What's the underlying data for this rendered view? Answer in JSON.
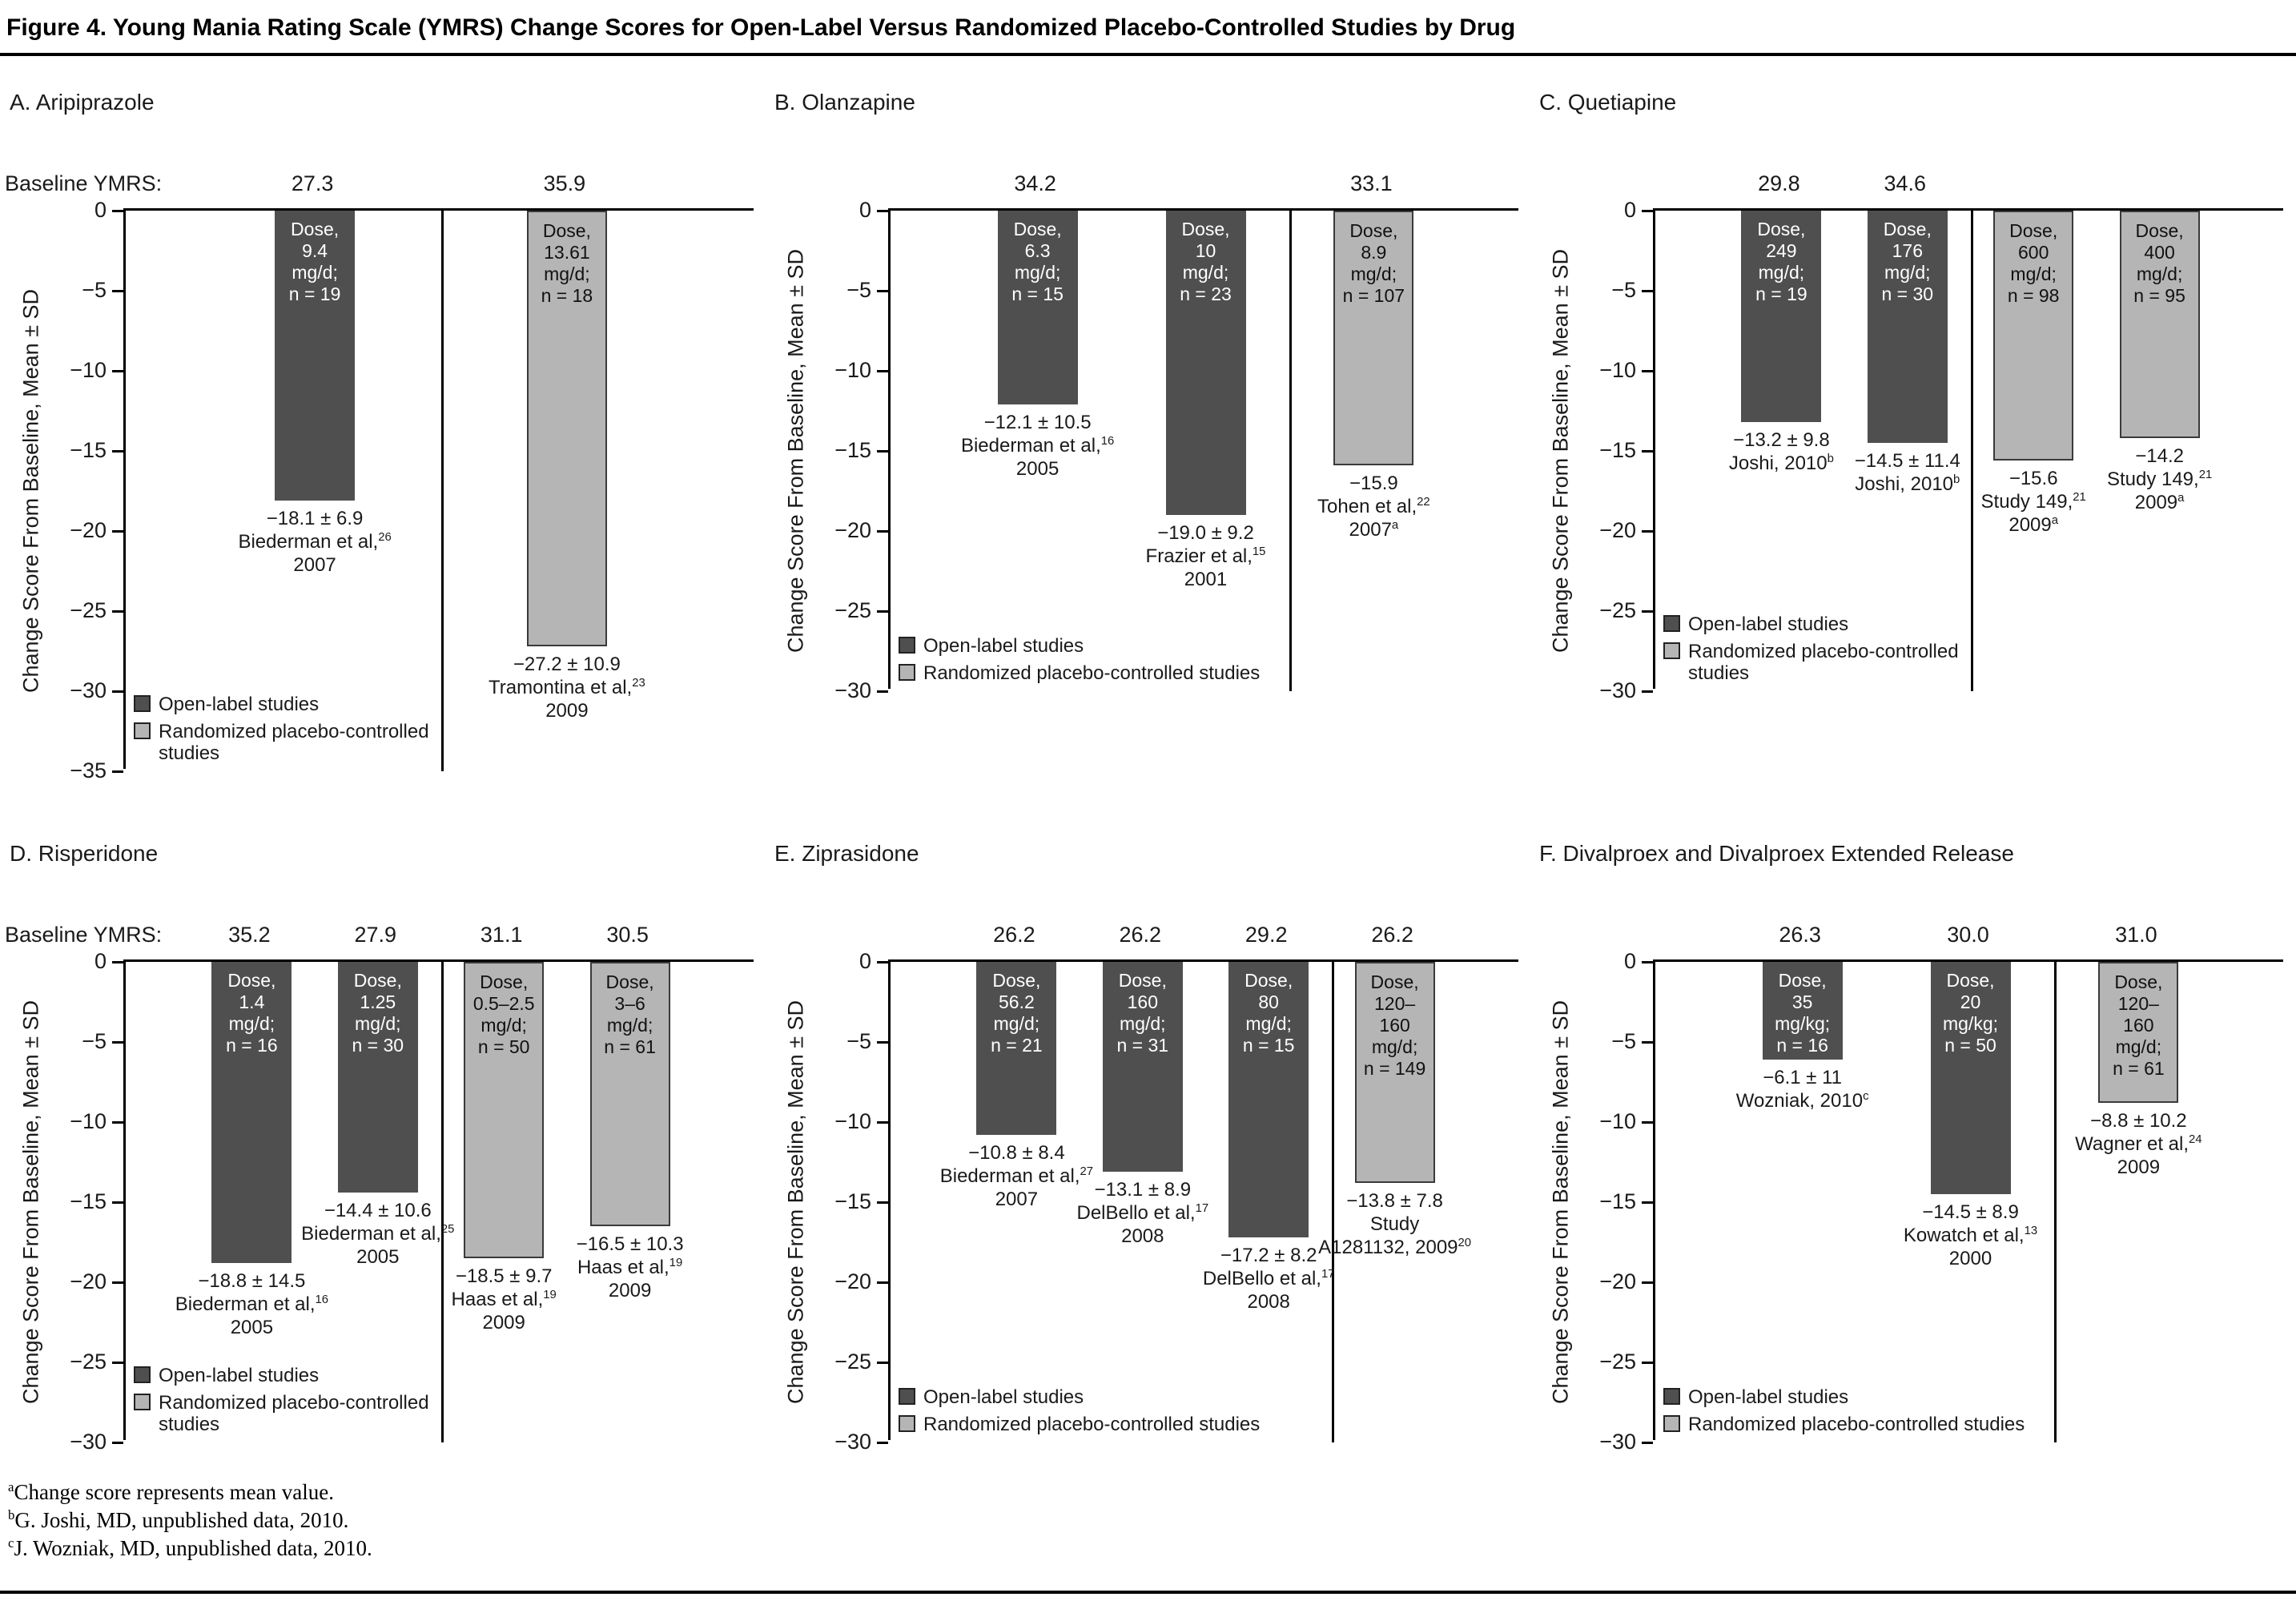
{
  "figure": {
    "title": "Figure 4. Young Mania Rating Scale (YMRS) Change Scores for Open-Label Versus Randomized Placebo-Controlled Studies by Drug"
  },
  "baseline_prefix": "Baseline YMRS:",
  "legend": {
    "open": "Open-label studies",
    "placebo": "Randomized placebo-controlled studies"
  },
  "colors": {
    "open_bar": "#4f4f4f",
    "placebo_bar": "#b5b5b5",
    "open_text": "#ffffff",
    "placebo_text": "#111111",
    "axis": "#000000"
  },
  "footnotes": [
    {
      "sup": "a",
      "text": "Change score represents mean value."
    },
    {
      "sup": "b",
      "text": "G. Joshi, MD, unpublished data, 2010."
    },
    {
      "sup": "c",
      "text": "J. Wozniak, MD, unpublished data, 2010."
    }
  ],
  "chart_data": [
    {
      "type": "bar",
      "panel": "A",
      "title": "A. Aripiprazole",
      "ylabel": "Change Score From Baseline, Mean ± SD",
      "ylim": [
        0,
        -35
      ],
      "ytick_step": 5,
      "show_baseline_prefix": true,
      "legend_wrap": true,
      "bars": [
        {
          "group": "open",
          "baseline_ymrs": "27.3",
          "dose_lines": [
            "Dose,",
            "9.4",
            "mg/d;",
            "n = 19"
          ],
          "value": -18.1,
          "sd": 6.9,
          "value_label": "−18.1 ± 6.9",
          "citation_lines": [
            "Biederman et al,^26^",
            "2007"
          ]
        },
        {
          "group": "placebo",
          "baseline_ymrs": "35.9",
          "dose_lines": [
            "Dose,",
            "13.61",
            "mg/d;",
            "n = 18"
          ],
          "value": -27.2,
          "sd": 10.9,
          "value_label": "−27.2 ± 10.9",
          "citation_lines": [
            "Tramontina et al,^23^",
            "2009"
          ]
        }
      ]
    },
    {
      "type": "bar",
      "panel": "B",
      "title": "B. Olanzapine",
      "ylabel": "Change Score From Baseline, Mean ± SD",
      "ylim": [
        0,
        -30
      ],
      "ytick_step": 5,
      "show_baseline_prefix": false,
      "legend_wrap": false,
      "bars": [
        {
          "group": "open",
          "baseline_ymrs": "34.2",
          "dose_lines": [
            "Dose,",
            "6.3",
            "mg/d;",
            "n = 15"
          ],
          "value": -12.1,
          "sd": 10.5,
          "value_label": "−12.1 ± 10.5",
          "citation_lines": [
            "Biederman et al,^16^",
            "2005"
          ]
        },
        {
          "group": "open",
          "baseline_ymrs": null,
          "dose_lines": [
            "Dose,",
            "10",
            "mg/d;",
            "n = 23"
          ],
          "value": -19.0,
          "sd": 9.2,
          "value_label": "−19.0 ± 9.2",
          "citation_lines": [
            "Frazier et al,^15^",
            "2001"
          ]
        },
        {
          "group": "placebo",
          "baseline_ymrs": "33.1",
          "dose_lines": [
            "Dose,",
            "8.9",
            "mg/d;",
            "n = 107"
          ],
          "value": -15.9,
          "sd": null,
          "value_label": "−15.9",
          "citation_lines": [
            "Tohen et al,^22^",
            "2007^a^"
          ]
        }
      ]
    },
    {
      "type": "bar",
      "panel": "C",
      "title": "C. Quetiapine",
      "ylabel": "Change Score From Baseline, Mean ± SD",
      "ylim": [
        0,
        -30
      ],
      "ytick_step": 5,
      "show_baseline_prefix": false,
      "legend_wrap": true,
      "bars": [
        {
          "group": "open",
          "baseline_ymrs": "29.8",
          "dose_lines": [
            "Dose,",
            "249",
            "mg/d;",
            "n = 19"
          ],
          "value": -13.2,
          "sd": 9.8,
          "value_label": "−13.2 ± 9.8",
          "citation_lines": [
            "Joshi, 2010^b^"
          ]
        },
        {
          "group": "open",
          "baseline_ymrs": "34.6",
          "dose_lines": [
            "Dose,",
            "176",
            "mg/d;",
            "n = 30"
          ],
          "value": -14.5,
          "sd": 11.4,
          "value_label": "−14.5 ± 11.4",
          "citation_lines": [
            "Joshi, 2010^b^"
          ]
        },
        {
          "group": "placebo",
          "baseline_ymrs": null,
          "dose_lines": [
            "Dose,",
            "600",
            "mg/d;",
            "n = 98"
          ],
          "value": -15.6,
          "sd": null,
          "value_label": "−15.6",
          "citation_lines": [
            "Study 149,^21^",
            "2009^a^"
          ]
        },
        {
          "group": "placebo",
          "baseline_ymrs": null,
          "dose_lines": [
            "Dose,",
            "400",
            "mg/d;",
            "n = 95"
          ],
          "value": -14.2,
          "sd": null,
          "value_label": "−14.2",
          "citation_lines": [
            "Study 149,^21^",
            "2009^a^"
          ]
        }
      ]
    },
    {
      "type": "bar",
      "panel": "D",
      "title": "D. Risperidone",
      "ylabel": "Change Score From Baseline, Mean ± SD",
      "ylim": [
        0,
        -30
      ],
      "ytick_step": 5,
      "show_baseline_prefix": true,
      "legend_wrap": true,
      "bars": [
        {
          "group": "open",
          "baseline_ymrs": "35.2",
          "dose_lines": [
            "Dose,",
            "1.4",
            "mg/d;",
            "n = 16"
          ],
          "value": -18.8,
          "sd": 14.5,
          "value_label": "−18.8 ± 14.5",
          "citation_lines": [
            "Biederman et al,^16^",
            "2005"
          ]
        },
        {
          "group": "open",
          "baseline_ymrs": "27.9",
          "dose_lines": [
            "Dose,",
            "1.25",
            "mg/d;",
            "n = 30"
          ],
          "value": -14.4,
          "sd": 10.6,
          "value_label": "−14.4 ± 10.6",
          "citation_lines": [
            "Biederman et al,^25^",
            "2005"
          ]
        },
        {
          "group": "placebo",
          "baseline_ymrs": "31.1",
          "dose_lines": [
            "Dose,",
            "0.5–2.5",
            "mg/d;",
            "n = 50"
          ],
          "value": -18.5,
          "sd": 9.7,
          "value_label": "−18.5 ± 9.7",
          "citation_lines": [
            "Haas et al,^19^",
            "2009"
          ]
        },
        {
          "group": "placebo",
          "baseline_ymrs": "30.5",
          "dose_lines": [
            "Dose,",
            "3–6",
            "mg/d;",
            "n = 61"
          ],
          "value": -16.5,
          "sd": 10.3,
          "value_label": "−16.5 ± 10.3",
          "citation_lines": [
            "Haas et al,^19^",
            "2009"
          ]
        }
      ]
    },
    {
      "type": "bar",
      "panel": "E",
      "title": "E. Ziprasidone",
      "ylabel": "Change Score From Baseline, Mean ± SD",
      "ylim": [
        0,
        -30
      ],
      "ytick_step": 5,
      "show_baseline_prefix": false,
      "legend_wrap": false,
      "bars": [
        {
          "group": "open",
          "baseline_ymrs": "26.2",
          "dose_lines": [
            "Dose,",
            "56.2",
            "mg/d;",
            "n = 21"
          ],
          "value": -10.8,
          "sd": 8.4,
          "value_label": "−10.8 ± 8.4",
          "citation_lines": [
            "Biederman et al,^27^",
            "2007"
          ]
        },
        {
          "group": "open",
          "baseline_ymrs": "26.2",
          "dose_lines": [
            "Dose,",
            "160",
            "mg/d;",
            "n = 31"
          ],
          "value": -13.1,
          "sd": 8.9,
          "value_label": "−13.1 ± 8.9",
          "citation_lines": [
            "DelBello et al,^17^",
            "2008"
          ]
        },
        {
          "group": "open",
          "baseline_ymrs": "29.2",
          "dose_lines": [
            "Dose,",
            "80",
            "mg/d;",
            "n = 15"
          ],
          "value": -17.2,
          "sd": 8.2,
          "value_label": "−17.2 ± 8.2",
          "citation_lines": [
            "DelBello et al,^17^",
            "2008"
          ]
        },
        {
          "group": "placebo",
          "baseline_ymrs": "26.2",
          "dose_lines": [
            "Dose,",
            "120–",
            "160",
            "mg/d;",
            "n = 149"
          ],
          "value": -13.8,
          "sd": 7.8,
          "value_label": "−13.8 ± 7.8",
          "citation_lines": [
            "Study",
            "A1281132, 2009^20^"
          ]
        }
      ]
    },
    {
      "type": "bar",
      "panel": "F",
      "title": "F. Divalproex and Divalproex Extended Release",
      "ylabel": "Change Score From Baseline, Mean ± SD",
      "ylim": [
        0,
        -30
      ],
      "ytick_step": 5,
      "show_baseline_prefix": false,
      "legend_wrap": false,
      "bars": [
        {
          "group": "open",
          "baseline_ymrs": "26.3",
          "dose_lines": [
            "Dose,",
            "35",
            "mg/kg;",
            "n = 16"
          ],
          "value": -6.1,
          "sd": 11,
          "value_label": "−6.1 ± 11",
          "citation_lines": [
            "Wozniak, 2010^c^"
          ]
        },
        {
          "group": "open",
          "baseline_ymrs": "30.0",
          "dose_lines": [
            "Dose,",
            "20",
            "mg/kg;",
            "n = 50"
          ],
          "value": -14.5,
          "sd": 8.9,
          "value_label": "−14.5 ± 8.9",
          "citation_lines": [
            "Kowatch et al,^13^",
            "2000"
          ]
        },
        {
          "group": "placebo",
          "baseline_ymrs": "31.0",
          "dose_lines": [
            "Dose,",
            "120–",
            "160",
            "mg/d;",
            "n = 61"
          ],
          "value": -8.8,
          "sd": 10.2,
          "value_label": "−8.8 ± 10.2",
          "citation_lines": [
            "Wagner et al,^24^",
            "2009"
          ]
        }
      ]
    }
  ]
}
